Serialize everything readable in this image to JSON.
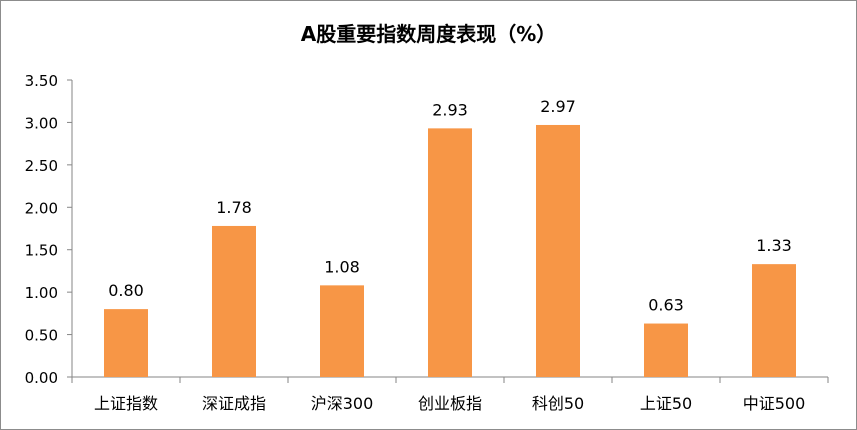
{
  "chart_data": {
    "type": "bar",
    "title": "A股重要指数周度表现（%）",
    "categories": [
      "上证指数",
      "深证成指",
      "沪深300",
      "创业板指",
      "科创50",
      "上证50",
      "中证500"
    ],
    "values": [
      0.8,
      1.78,
      1.08,
      2.93,
      2.97,
      0.63,
      1.33
    ],
    "value_labels": [
      "0.80",
      "1.78",
      "1.08",
      "2.93",
      "2.97",
      "0.63",
      "1.33"
    ],
    "yticks": [
      "0.00",
      "0.50",
      "1.00",
      "1.50",
      "2.00",
      "2.50",
      "3.00",
      "3.50"
    ],
    "ylim": [
      0,
      3.5
    ],
    "bar_color": "#F79646",
    "grid": false,
    "legend": "none"
  }
}
